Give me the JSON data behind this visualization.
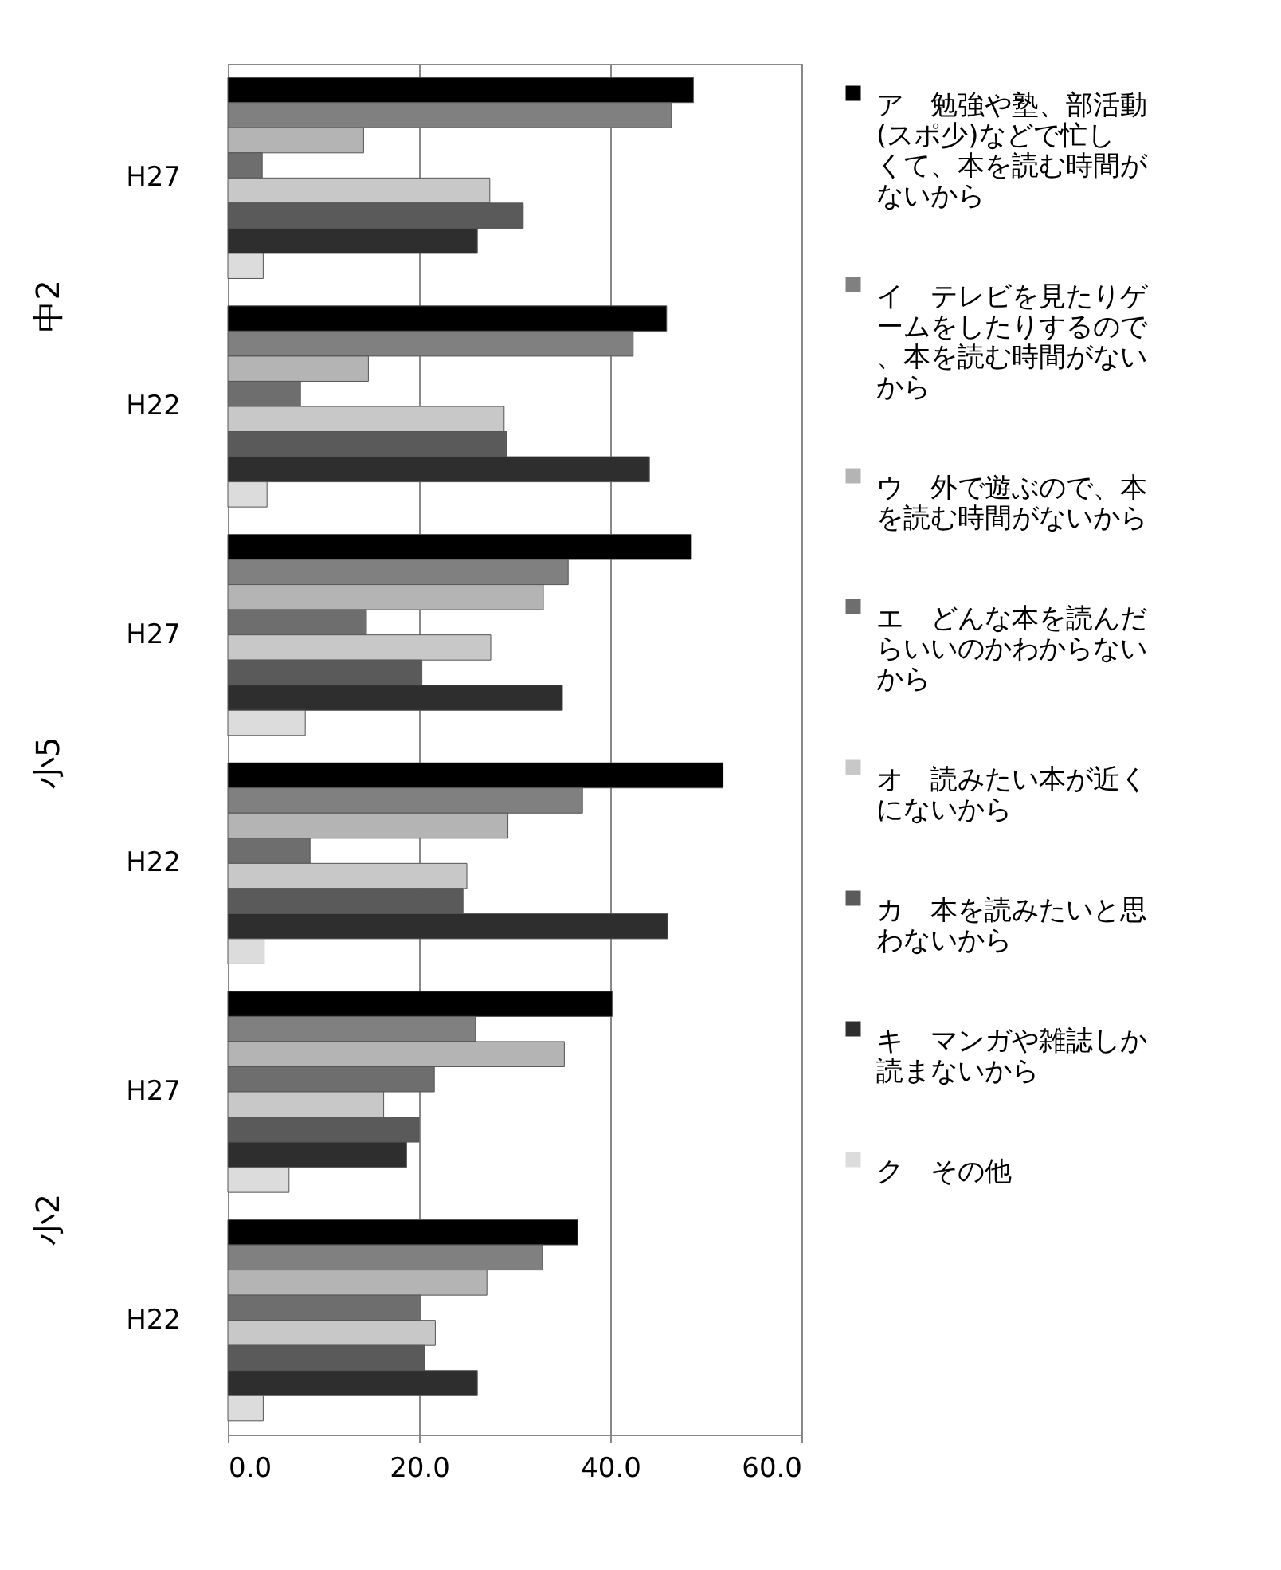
{
  "chart_data": {
    "type": "bar",
    "orientation": "horizontal",
    "categories": [
      "H27",
      "H22",
      "H27",
      "H22",
      "H27",
      "H22"
    ],
    "annotations": [
      "中2",
      "小5",
      "小2"
    ],
    "series": [
      {
        "name": "ア　勉強や塾、部活動(スポ少)などで忙しくて、本を読む時間がないから",
        "color": "#000000",
        "values": [
          48.7,
          45.9,
          48.5,
          51.8,
          40.2,
          36.6
        ]
      },
      {
        "name": "イ　テレビを見たりゲームをしたりするので、本を読む時間がないから",
        "color": "#808080",
        "values": [
          46.4,
          42.4,
          35.6,
          37.1,
          25.9,
          32.9
        ]
      },
      {
        "name": "ウ　外で遊ぶので、本を読む時間がないから",
        "color": "#b4b4b4",
        "values": [
          14.2,
          14.7,
          33.0,
          29.3,
          35.2,
          27.1
        ]
      },
      {
        "name": "エ　どんな本を読んだらいいのかわからないから",
        "color": "#6e6e6e",
        "values": [
          3.6,
          7.6,
          14.5,
          8.6,
          21.6,
          20.2
        ]
      },
      {
        "name": "オ　読みたい本が近くにないから",
        "color": "#c8c8c8",
        "values": [
          27.4,
          28.9,
          27.5,
          25.0,
          16.3,
          21.7
        ]
      },
      {
        "name": "カ　本を読みたいと思わないから",
        "color": "#5a5a5a",
        "values": [
          30.9,
          29.2,
          20.3,
          24.6,
          20.0,
          20.6
        ]
      },
      {
        "name": "キ　マンガや雑誌しか読まないから",
        "color": "#2e2e2e",
        "values": [
          26.1,
          44.1,
          35.0,
          46.0,
          18.7,
          26.1
        ]
      },
      {
        "name": "ク　その他",
        "color": "#dcdcdc",
        "values": [
          3.7,
          4.1,
          8.1,
          3.8,
          6.4,
          3.7
        ]
      }
    ],
    "xlim": [
      0,
      60
    ],
    "xticks": [
      {
        "value": 0,
        "label": "0.0"
      },
      {
        "value": 20,
        "label": "20.0"
      },
      {
        "value": 40,
        "label": "40.0"
      },
      {
        "value": 60,
        "label": "60.0"
      }
    ],
    "grid": "x",
    "legend": "right"
  }
}
